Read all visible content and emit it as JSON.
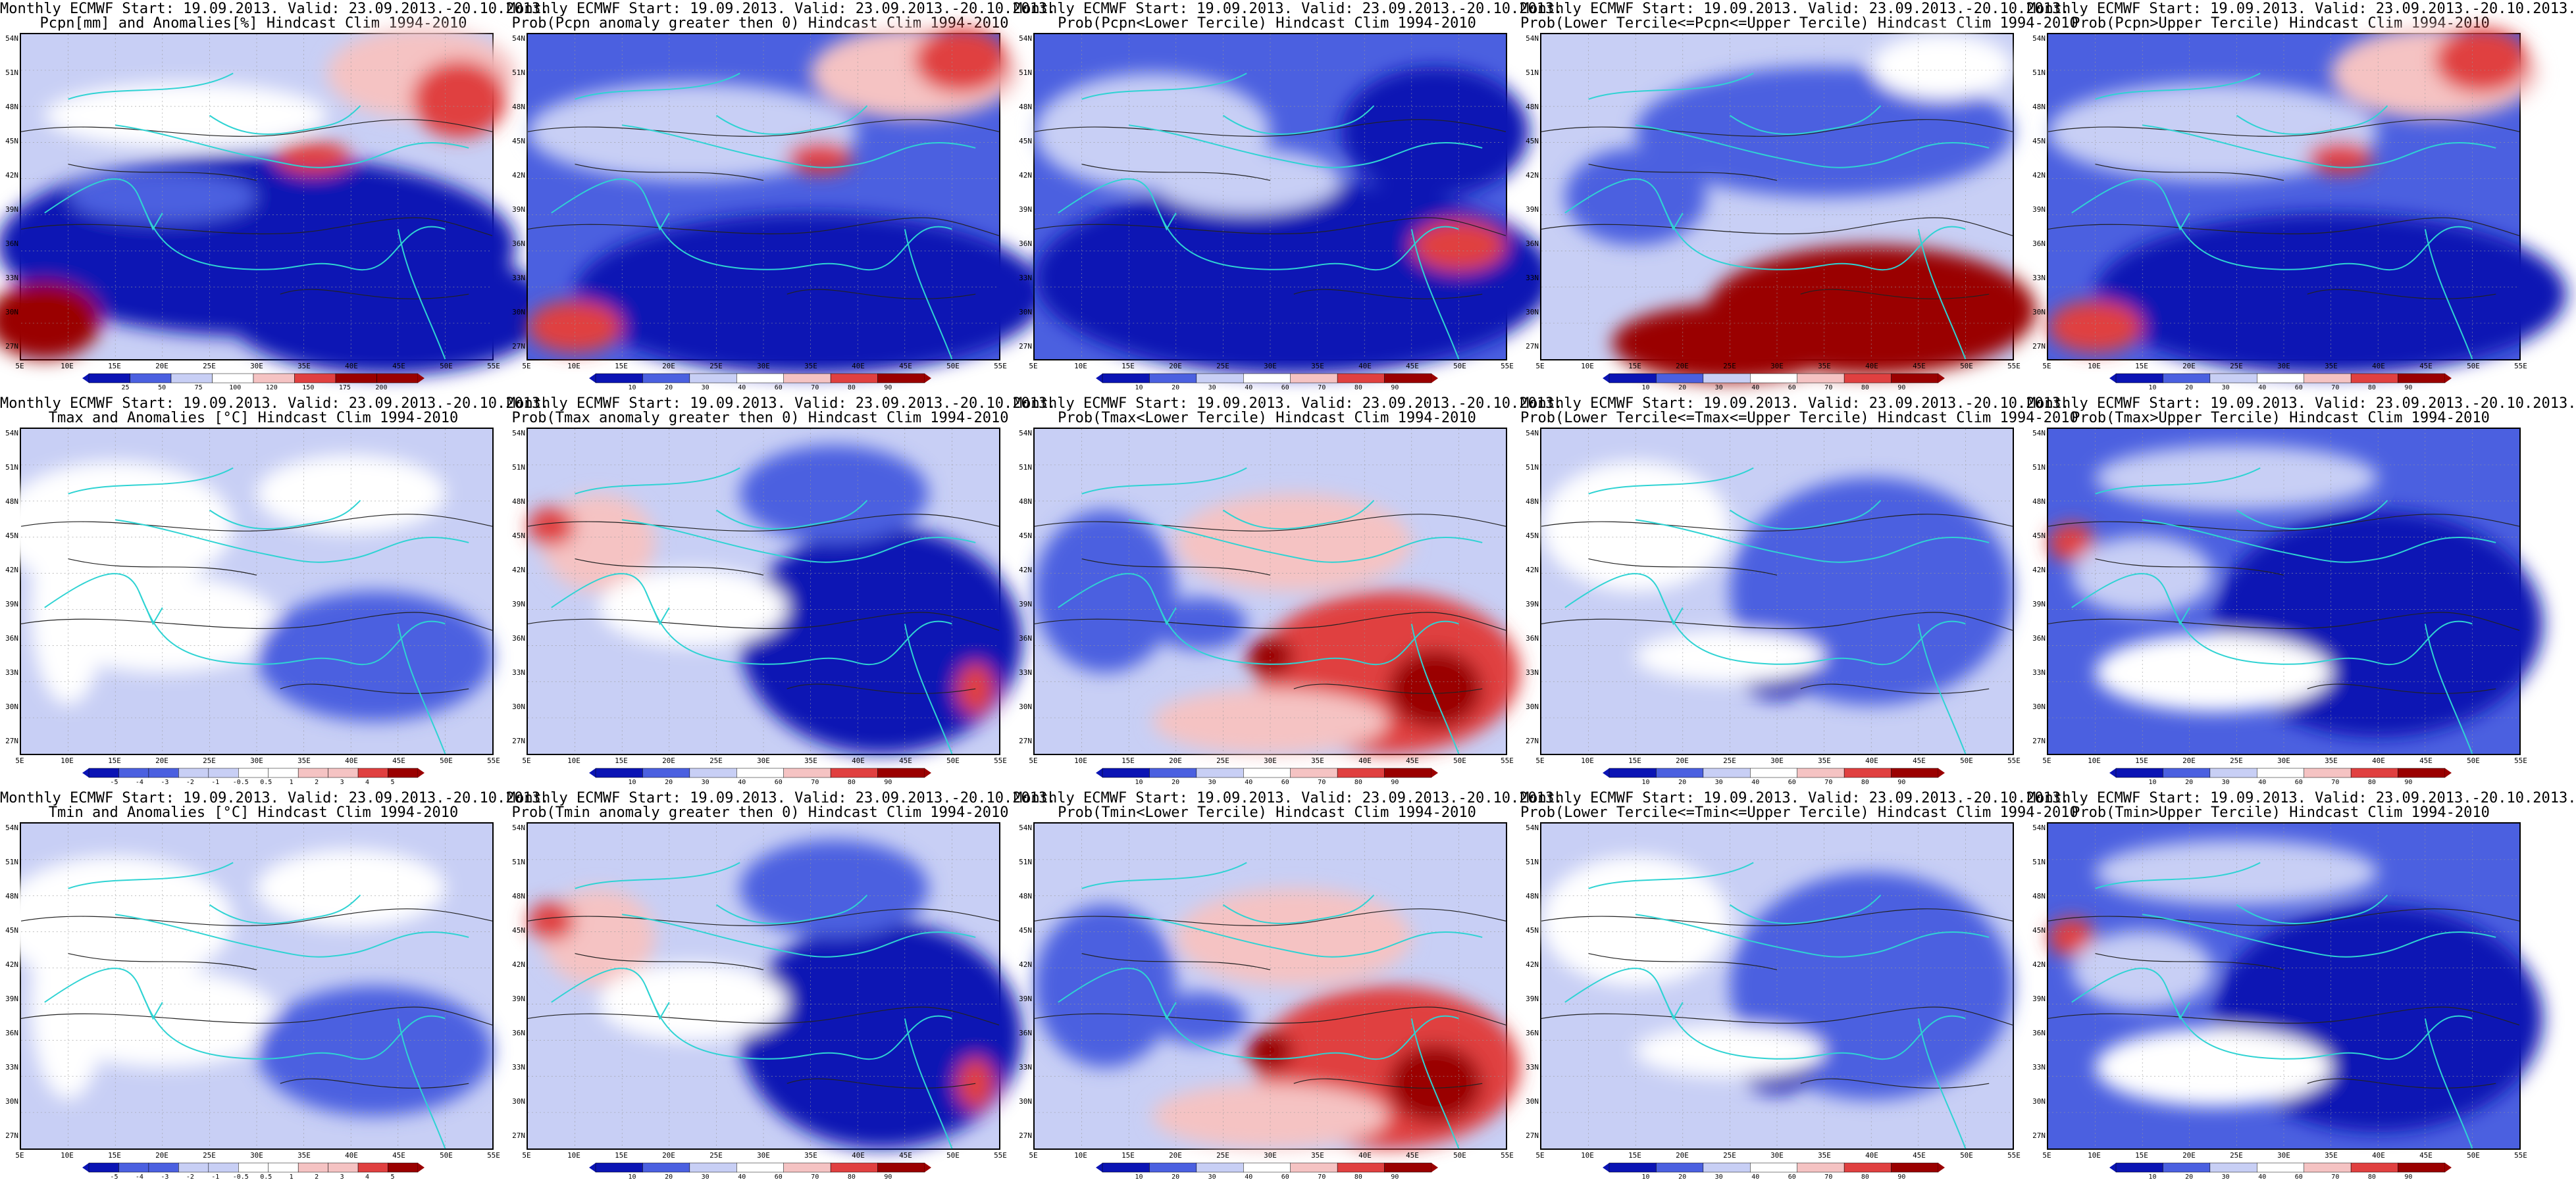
{
  "figure": {
    "colors": {
      "deep_blue": "#0b14b4",
      "mid_blue": "#4b60e0",
      "light_blue": "#c8cff5",
      "white": "#ffffff",
      "light_red": "#f5c3c3",
      "mid_red": "#e04040",
      "deep_red": "#9a0000",
      "coast": "#2fd3d3",
      "contour": "#222222"
    },
    "lat_labels": [
      "54N",
      "51N",
      "48N",
      "45N",
      "42N",
      "39N",
      "36N",
      "33N",
      "30N",
      "27N"
    ],
    "lon_labels": [
      "5E",
      "10E",
      "15E",
      "20E",
      "25E",
      "30E",
      "35E",
      "40E",
      "45E",
      "50E",
      "55E"
    ],
    "scales": {
      "anom_pcpn": [
        "25",
        "50",
        "75",
        "100",
        "120",
        "150",
        "175",
        "200"
      ],
      "prob_anom": [
        "10",
        "20",
        "30",
        "40",
        "60",
        "70",
        "80",
        "90"
      ],
      "anom_temp": [
        "-5",
        "-4",
        "-3",
        "-2",
        "-1",
        "-0.5",
        "0.5",
        "1",
        "2",
        "3",
        "4",
        "5"
      ]
    },
    "panels": [
      {
        "title1": "Monthly ECMWF Start: 19.09.2013. Valid: 23.09.2013.-20.10.2013.",
        "title2": "Pcpn[mm] and Anomalies[%] Hindcast Clim 1994-2010",
        "scale": "anom_pcpn",
        "pattern": "p1"
      },
      {
        "title1": "Monthly ECMWF Start: 19.09.2013. Valid: 23.09.2013.-20.10.2013.",
        "title2": "Prob(Pcpn anomaly greater then 0) Hindcast Clim 1994-2010",
        "scale": "prob_anom",
        "pattern": "p2"
      },
      {
        "title1": "Monthly ECMWF Start: 19.09.2013. Valid: 23.09.2013.-20.10.2013.",
        "title2": "Prob(Pcpn<Lower Tercile) Hindcast Clim 1994-2010",
        "scale": "prob_anom",
        "pattern": "p3"
      },
      {
        "title1": "Monthly ECMWF Start: 19.09.2013. Valid: 23.09.2013.-20.10.2013.",
        "title2": "Prob(Lower Tercile<=Pcpn<=Upper Tercile) Hindcast Clim 1994-2010",
        "scale": "prob_anom",
        "pattern": "p4"
      },
      {
        "title1": "Monthly ECMWF Start: 19.09.2013. Valid: 23.09.2013.-20.10.2013.",
        "title2": "Prob(Pcpn>Upper Tercile) Hindcast Clim 1994-2010",
        "scale": "prob_anom",
        "pattern": "p2"
      },
      {
        "title1": "Monthly ECMWF Start: 19.09.2013. Valid: 23.09.2013.-20.10.2013.",
        "title2": "Tmax and Anomalies [°C] Hindcast Clim 1994-2010",
        "scale": "anom_temp",
        "pattern": "t1"
      },
      {
        "title1": "Monthly ECMWF Start: 19.09.2013. Valid: 23.09.2013.-20.10.2013.",
        "title2": "Prob(Tmax anomaly greater then 0) Hindcast Clim 1994-2010",
        "scale": "prob_anom",
        "pattern": "t2"
      },
      {
        "title1": "Monthly ECMWF Start: 19.09.2013. Valid: 23.09.2013.-20.10.2013.",
        "title2": "Prob(Tmax<Lower Tercile) Hindcast Clim 1994-2010",
        "scale": "prob_anom",
        "pattern": "t3"
      },
      {
        "title1": "Monthly ECMWF Start: 19.09.2013. Valid: 23.09.2013.-20.10.2013.",
        "title2": "Prob(Lower Tercile<=Tmax<=Upper Tercile) Hindcast Clim 1994-2010",
        "scale": "prob_anom",
        "pattern": "t4"
      },
      {
        "title1": "Monthly ECMWF Start: 19.09.2013. Valid: 23.09.2013.-20.10.2013.",
        "title2": "Prob(Tmax>Upper Tercile) Hindcast Clim 1994-2010",
        "scale": "prob_anom",
        "pattern": "t5"
      },
      {
        "title1": "Monthly ECMWF Start: 19.09.2013. Valid: 23.09.2013.-20.10.2013.",
        "title2": "Tmin and Anomalies [°C] Hindcast Clim 1994-2010",
        "scale": "anom_temp",
        "pattern": "t1"
      },
      {
        "title1": "Monthly ECMWF Start: 19.09.2013. Valid: 23.09.2013.-20.10.2013.",
        "title2": "Prob(Tmin anomaly greater then 0) Hindcast Clim 1994-2010",
        "scale": "prob_anom",
        "pattern": "t2"
      },
      {
        "title1": "Monthly ECMWF Start: 19.09.2013. Valid: 23.09.2013.-20.10.2013.",
        "title2": "Prob(Tmin<Lower Tercile) Hindcast Clim 1994-2010",
        "scale": "prob_anom",
        "pattern": "t3"
      },
      {
        "title1": "Monthly ECMWF Start: 19.09.2013. Valid: 23.09.2013.-20.10.2013.",
        "title2": "Prob(Lower Tercile<=Tmin<=Upper Tercile) Hindcast Clim 1994-2010",
        "scale": "prob_anom",
        "pattern": "t4"
      },
      {
        "title1": "Monthly ECMWF Start: 19.09.2013. Valid: 23.09.2013.-20.10.2013.",
        "title2": "Prob(Tmin>Upper Tercile) Hindcast Clim 1994-2010",
        "scale": "prob_anom",
        "pattern": "t5"
      }
    ]
  }
}
